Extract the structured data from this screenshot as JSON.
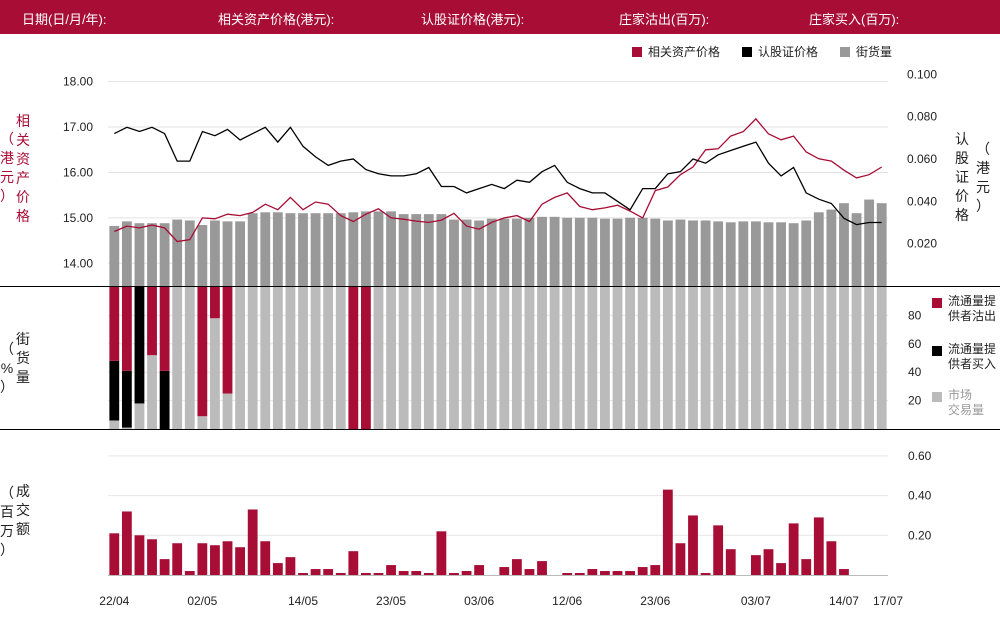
{
  "header": {
    "date": "日期(日/月/年):",
    "underlying": "相关资产价格(港元):",
    "warrant": "认股证价格(港元):",
    "mm_sell": "庄家沽出(百万):",
    "mm_buy": "庄家买入(百万):"
  },
  "legend": {
    "items": [
      {
        "label": "相关资产价格",
        "color": "#a80d35"
      },
      {
        "label": "认股证价格",
        "color": "#000000"
      },
      {
        "label": "街货量",
        "color": "#999999"
      }
    ]
  },
  "axis_labels": {
    "left_top": "相\n关\n资\n产\n价\n格",
    "left_top_unit": "（\n港\n元\n）",
    "right_top": "认\n股\n证\n价\n格",
    "right_top_unit": "（\n港\n元\n）",
    "left_mid": "街\n货\n量",
    "left_mid_unit": "（\n%\n）",
    "left_bot": "成\n交\n额",
    "left_bot_unit": "（\n百\n万\n）"
  },
  "share_legend": {
    "items": [
      {
        "label": "流通量提\n供者沽出",
        "color": "#a80d35"
      },
      {
        "label": "流通量提\n供者买入",
        "color": "#000000"
      },
      {
        "label": "市场\n交易量",
        "color": "#bbbbbb"
      }
    ]
  },
  "chart_data": [
    {
      "type": "line",
      "title": "",
      "x": [
        "22/04",
        "23/04",
        "24/04",
        "25/04",
        "28/04",
        "29/04",
        "30/04",
        "02/05",
        "05/05",
        "06/05",
        "07/05",
        "08/05",
        "09/05",
        "12/05",
        "13/05",
        "14/05",
        "15/05",
        "16/05",
        "19/05",
        "20/05",
        "21/05",
        "22/05",
        "23/05",
        "26/05",
        "27/05",
        "28/05",
        "29/05",
        "30/05",
        "02/06",
        "03/06",
        "04/06",
        "05/06",
        "06/06",
        "09/06",
        "10/06",
        "11/06",
        "12/06",
        "13/06",
        "16/06",
        "17/06",
        "18/06",
        "19/06",
        "20/06",
        "23/06",
        "24/06",
        "25/06",
        "26/06",
        "27/06",
        "30/06",
        "01/07",
        "02/07",
        "03/07",
        "04/07",
        "07/07",
        "08/07",
        "09/07",
        "10/07",
        "11/07",
        "14/07",
        "15/07",
        "16/07",
        "17/07"
      ],
      "x_tick_labels": [
        "22/04",
        "02/05",
        "14/05",
        "23/05",
        "03/06",
        "12/06",
        "23/06",
        "03/07",
        "14/07",
        "17/07"
      ],
      "series": [
        {
          "name": "相关资产价格",
          "axis": "left",
          "color": "#a80d35",
          "values": [
            14.7,
            14.82,
            14.78,
            14.84,
            14.78,
            14.48,
            14.52,
            15.0,
            14.98,
            15.08,
            15.05,
            15.12,
            15.3,
            15.18,
            15.45,
            15.18,
            15.35,
            15.3,
            15.05,
            14.92,
            15.08,
            15.2,
            15.0,
            14.97,
            14.93,
            14.9,
            14.95,
            15.1,
            14.82,
            14.75,
            14.9,
            15.0,
            15.05,
            14.92,
            15.3,
            15.45,
            15.55,
            15.25,
            15.18,
            15.22,
            15.28,
            15.15,
            15.0,
            15.6,
            15.68,
            15.95,
            16.12,
            16.5,
            16.52,
            16.8,
            16.9,
            17.18,
            16.85,
            16.72,
            16.8,
            16.45,
            16.3,
            16.25,
            16.05,
            15.88,
            15.95,
            16.12
          ]
        },
        {
          "name": "认股证价格",
          "axis": "right",
          "color": "#000000",
          "values": [
            0.072,
            0.075,
            0.073,
            0.075,
            0.072,
            0.059,
            0.059,
            0.073,
            0.071,
            0.074,
            0.069,
            0.072,
            0.075,
            0.068,
            0.075,
            0.066,
            0.061,
            0.057,
            0.059,
            0.06,
            0.055,
            0.053,
            0.052,
            0.052,
            0.053,
            0.056,
            0.047,
            0.047,
            0.044,
            0.046,
            0.048,
            0.046,
            0.05,
            0.049,
            0.054,
            0.057,
            0.049,
            0.046,
            0.044,
            0.044,
            0.04,
            0.036,
            0.046,
            0.046,
            0.053,
            0.054,
            0.06,
            0.058,
            0.062,
            0.064,
            0.066,
            0.068,
            0.058,
            0.052,
            0.056,
            0.044,
            0.041,
            0.039,
            0.032,
            0.029,
            0.03,
            0.03
          ]
        }
      ],
      "ylim_left": [
        13.5,
        18.3
      ],
      "yticks_left": [
        "14.00",
        "15.00",
        "16.00",
        "17.00",
        "18.00"
      ],
      "ylim_right": [
        0.0,
        0.103
      ],
      "yticks_right": [
        "0.020",
        "0.040",
        "0.060",
        "0.080",
        "0.100"
      ],
      "legend_position": "top-right"
    },
    {
      "type": "bar",
      "title": "",
      "series": [
        {
          "name": "街货量",
          "color": "#999999",
          "values": [
            0.66,
            0.71,
            0.69,
            0.69,
            0.69,
            0.73,
            0.72,
            0.67,
            0.72,
            0.71,
            0.71,
            0.8,
            0.81,
            0.81,
            0.8,
            0.8,
            0.8,
            0.8,
            0.8,
            0.81,
            0.82,
            0.82,
            0.82,
            0.79,
            0.79,
            0.79,
            0.79,
            0.73,
            0.73,
            0.72,
            0.74,
            0.74,
            0.74,
            0.75,
            0.76,
            0.76,
            0.75,
            0.75,
            0.75,
            0.74,
            0.74,
            0.75,
            0.75,
            0.74,
            0.72,
            0.73,
            0.72,
            0.72,
            0.71,
            0.7,
            0.71,
            0.71,
            0.7,
            0.7,
            0.69,
            0.72,
            0.81,
            0.84,
            0.91,
            0.8,
            0.95,
            0.91
          ]
        }
      ],
      "grid": true
    },
    {
      "type": "bar",
      "title": "",
      "stacked": true,
      "ylim": [
        0,
        100
      ],
      "yticks": [
        "20",
        "40",
        "60",
        "80"
      ],
      "series": [
        {
          "name": "流通量提供者沽出",
          "color": "#a80d35",
          "values": [
            52,
            59,
            0,
            48,
            59,
            0,
            0,
            91,
            22,
            75,
            0,
            0,
            0,
            0,
            0,
            0,
            0,
            0,
            0,
            100,
            100,
            0,
            0,
            0,
            0,
            0,
            0,
            0,
            0,
            0,
            0,
            0,
            0,
            0,
            0,
            0,
            0,
            0,
            0,
            0,
            0,
            0,
            0,
            0,
            0,
            0,
            0,
            0,
            0,
            0,
            0,
            0,
            0,
            0,
            0,
            0,
            0,
            0,
            0,
            0,
            0,
            0
          ]
        },
        {
          "name": "流通量提供者买入",
          "color": "#000000",
          "values": [
            42,
            40,
            82,
            0,
            41,
            0,
            0,
            0,
            0,
            0,
            0,
            0,
            0,
            0,
            0,
            0,
            0,
            0,
            0,
            0,
            0,
            0,
            0,
            0,
            0,
            0,
            0,
            0,
            0,
            0,
            0,
            0,
            0,
            0,
            0,
            0,
            0,
            0,
            0,
            0,
            0,
            0,
            0,
            0,
            0,
            0,
            0,
            0,
            0,
            0,
            0,
            0,
            0,
            0,
            0,
            0,
            0,
            0,
            0,
            0,
            0,
            0
          ]
        },
        {
          "name": "市场交易量",
          "color": "#bbbbbb",
          "values": [
            6,
            1,
            18,
            52,
            0,
            100,
            100,
            9,
            78,
            25,
            100,
            100,
            100,
            100,
            100,
            100,
            100,
            100,
            100,
            0,
            0,
            100,
            100,
            100,
            100,
            100,
            100,
            100,
            100,
            100,
            100,
            100,
            100,
            100,
            100,
            100,
            100,
            100,
            100,
            100,
            100,
            100,
            100,
            100,
            100,
            100,
            100,
            100,
            100,
            100,
            100,
            100,
            100,
            100,
            100,
            100,
            100,
            100,
            100,
            100,
            100,
            100
          ]
        }
      ]
    },
    {
      "type": "bar",
      "title": "",
      "ylim": [
        0,
        0.68
      ],
      "yticks": [
        "0.20",
        "0.40",
        "0.60"
      ],
      "series": [
        {
          "name": "成交额",
          "color": "#a80d35",
          "values": [
            0.21,
            0.32,
            0.2,
            0.18,
            0.08,
            0.16,
            0.02,
            0.16,
            0.15,
            0.17,
            0.14,
            0.33,
            0.17,
            0.06,
            0.09,
            0.01,
            0.03,
            0.03,
            0.01,
            0.12,
            0.01,
            0.01,
            0.05,
            0.02,
            0.02,
            0.01,
            0.22,
            0.01,
            0.02,
            0.05,
            0.0,
            0.04,
            0.08,
            0.03,
            0.07,
            0.0,
            0.01,
            0.01,
            0.03,
            0.02,
            0.02,
            0.02,
            0.04,
            0.05,
            0.43,
            0.16,
            0.3,
            0.01,
            0.25,
            0.13,
            0.0,
            0.1,
            0.13,
            0.06,
            0.26,
            0.08,
            0.29,
            0.17,
            0.03,
            0.0,
            0.0,
            0.0
          ]
        }
      ]
    }
  ]
}
